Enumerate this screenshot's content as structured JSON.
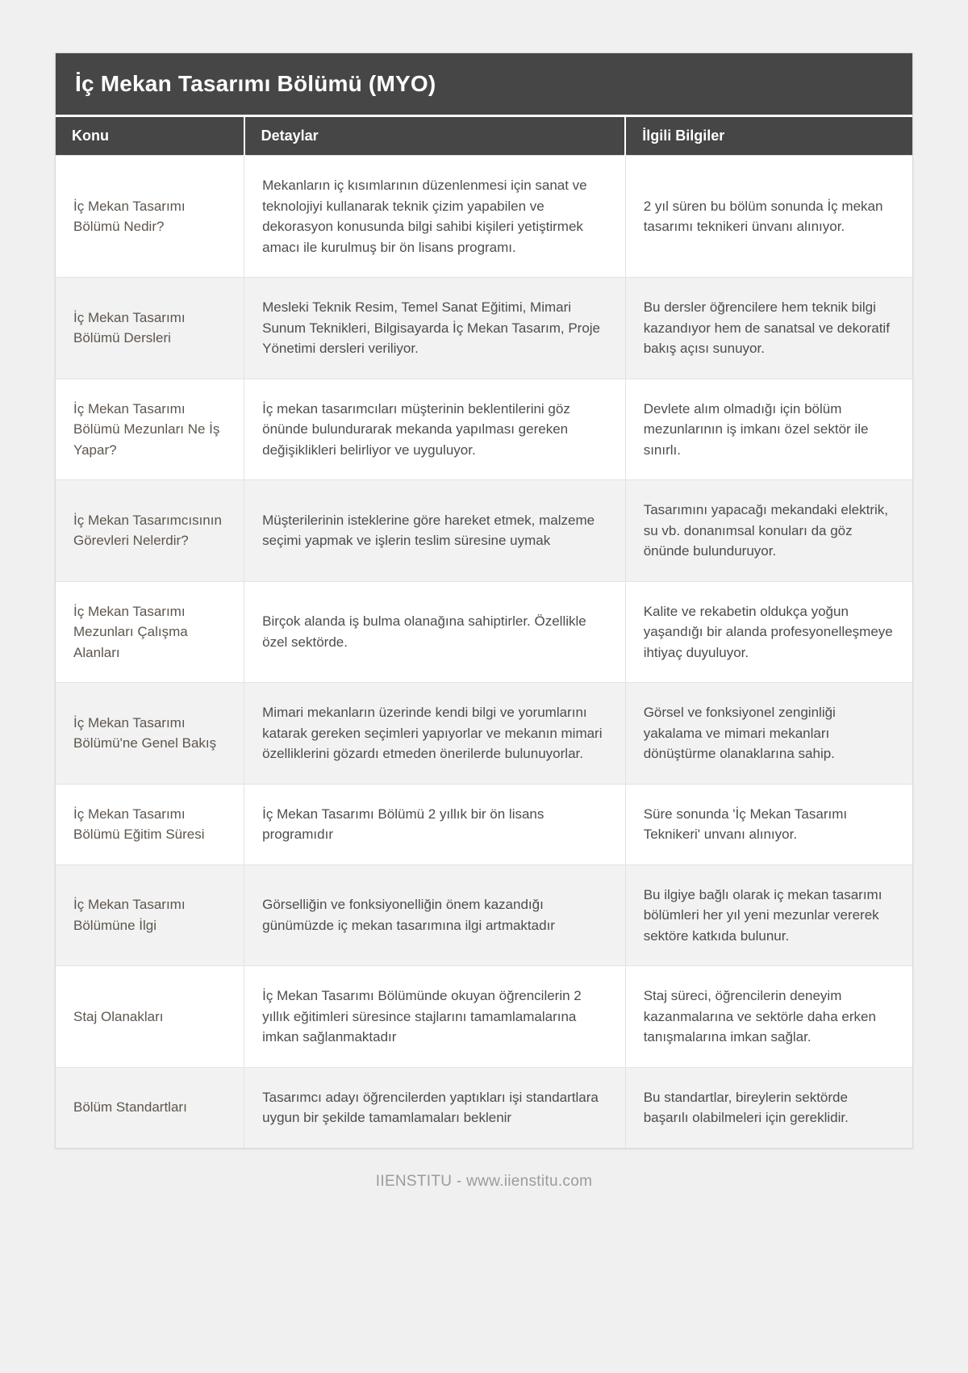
{
  "page": {
    "title": "İç Mekan Tasarımı Bölümü (MYO)",
    "footer": "IIENSTITU - www.iienstitu.com"
  },
  "colors": {
    "header_bg": "#464646",
    "header_text": "#ffffff",
    "row_bg": "#ffffff",
    "row_alt_bg": "#f2f2f2",
    "border": "#e3e3e3",
    "topic_text": "#5d564e",
    "body_text": "#4d4d4d",
    "page_bg": "#f0f0f0",
    "footer_text": "#9b9b9b"
  },
  "table": {
    "columns": [
      "Konu",
      "Detaylar",
      "İlgili Bilgiler"
    ],
    "rows": [
      {
        "konu": "İç Mekan Tasarımı Bölümü Nedir?",
        "detaylar": "Mekanların iç kısımlarının düzenlenmesi için sanat ve teknolojiyi kullanarak teknik çizim yapabilen ve dekorasyon konusunda bilgi sahibi kişileri yetiştirmek amacı ile kurulmuş bir ön lisans programı.",
        "ilgili": "2 yıl süren bu bölüm sonunda İç mekan tasarımı teknikeri ünvanı alınıyor."
      },
      {
        "konu": "İç Mekan Tasarımı Bölümü Dersleri",
        "detaylar": "Mesleki Teknik Resim, Temel Sanat Eğitimi, Mimari Sunum Teknikleri, Bilgisayarda İç Mekan Tasarım, Proje Yönetimi dersleri veriliyor.",
        "ilgili": "Bu dersler öğrencilere hem teknik bilgi kazandıyor hem de sanatsal ve dekoratif bakış açısı sunuyor."
      },
      {
        "konu": "İç Mekan Tasarımı Bölümü Mezunları Ne İş Yapar?",
        "detaylar": "İç mekan tasarımcıları müşterinin beklentilerini göz önünde bulundurarak mekanda yapılması gereken değişiklikleri belirliyor ve uyguluyor.",
        "ilgili": "Devlete alım olmadığı için bölüm mezunlarının iş imkanı özel sektör ile sınırlı."
      },
      {
        "konu": "İç Mekan Tasarımcısının Görevleri Nelerdir?",
        "detaylar": "Müşterilerinin isteklerine göre hareket etmek, malzeme seçimi yapmak ve işlerin teslim süresine uymak",
        "ilgili": "Tasarımını yapacağı mekandaki elektrik, su vb. donanımsal konuları da göz önünde bulunduruyor."
      },
      {
        "konu": "İç Mekan Tasarımı Mezunları Çalışma Alanları",
        "detaylar": "Birçok alanda iş bulma olanağına sahiptirler. Özellikle özel sektörde.",
        "ilgili": "Kalite ve rekabetin oldukça yoğun yaşandığı bir alanda profesyonelleşmeye ihtiyaç duyuluyor."
      },
      {
        "konu": "İç Mekan Tasarımı Bölümü'ne Genel Bakış",
        "detaylar": "Mimari mekanların üzerinde kendi bilgi ve yorumlarını katarak gereken seçimleri yapıyorlar ve mekanın mimari özelliklerini gözardı etmeden önerilerde bulunuyorlar.",
        "ilgili": "Görsel ve fonksiyonel zenginliği yakalama ve mimari mekanları dönüştürme olanaklarına sahip."
      },
      {
        "konu": "İç Mekan Tasarımı Bölümü Eğitim Süresi",
        "detaylar": "İç Mekan Tasarımı Bölümü 2 yıllık bir ön lisans programıdır",
        "ilgili": "Süre sonunda 'İç Mekan Tasarımı Teknikeri' unvanı alınıyor."
      },
      {
        "konu": "İç Mekan Tasarımı Bölümüne İlgi",
        "detaylar": "Görselliğin ve fonksiyonelliğin önem kazandığı günümüzde iç mekan tasarımına ilgi artmaktadır",
        "ilgili": "Bu ilgiye bağlı olarak iç mekan tasarımı bölümleri her yıl yeni mezunlar vererek sektöre katkıda bulunur."
      },
      {
        "konu": "Staj Olanakları",
        "detaylar": "İç Mekan Tasarımı Bölümünde okuyan öğrencilerin 2 yıllık eğitimleri süresince stajlarını tamamlamalarına imkan sağlanmaktadır",
        "ilgili": "Staj süreci, öğrencilerin deneyim kazanmalarına ve sektörle daha erken tanışmalarına imkan sağlar."
      },
      {
        "konu": "Bölüm Standartları",
        "detaylar": "Tasarımcı adayı öğrencilerden yaptıkları işi standartlara uygun bir şekilde tamamlamaları beklenir",
        "ilgili": "Bu standartlar, bireylerin sektörde başarılı olabilmeleri için gereklidir."
      }
    ]
  }
}
